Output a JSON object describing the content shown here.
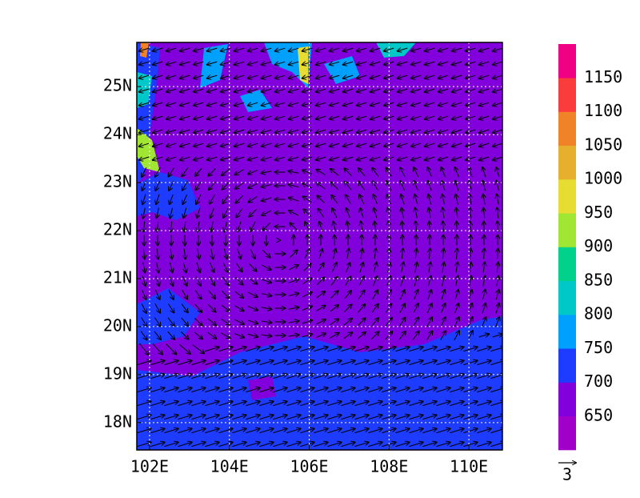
{
  "map": {
    "xlim": [
      101.68,
      110.84
    ],
    "ylim": [
      17.43,
      25.92
    ],
    "xticks": [
      {
        "value": 102,
        "label": "102E"
      },
      {
        "value": 104,
        "label": "104E"
      },
      {
        "value": 106,
        "label": "106E"
      },
      {
        "value": 108,
        "label": "108E"
      },
      {
        "value": 110,
        "label": "110E"
      }
    ],
    "yticks": [
      {
        "value": 25,
        "label": "25N"
      },
      {
        "value": 24,
        "label": "24N"
      },
      {
        "value": 23,
        "label": "23N"
      },
      {
        "value": 22,
        "label": "22N"
      },
      {
        "value": 21,
        "label": "21N"
      },
      {
        "value": 20,
        "label": "20N"
      },
      {
        "value": 19,
        "label": "19N"
      },
      {
        "value": 18,
        "label": "18N"
      }
    ],
    "colorbar": {
      "labels": [
        "650",
        "700",
        "750",
        "800",
        "850",
        "900",
        "950",
        "1000",
        "1050",
        "1100",
        "1150"
      ],
      "colors": [
        "#a000c8",
        "#8200dc",
        "#1e3cff",
        "#00a0ff",
        "#00c8c8",
        "#00d28c",
        "#a0e632",
        "#e6dc32",
        "#e6af2d",
        "#f08228",
        "#fa3c3c",
        "#f00082"
      ]
    },
    "reference_vector": "3"
  }
}
